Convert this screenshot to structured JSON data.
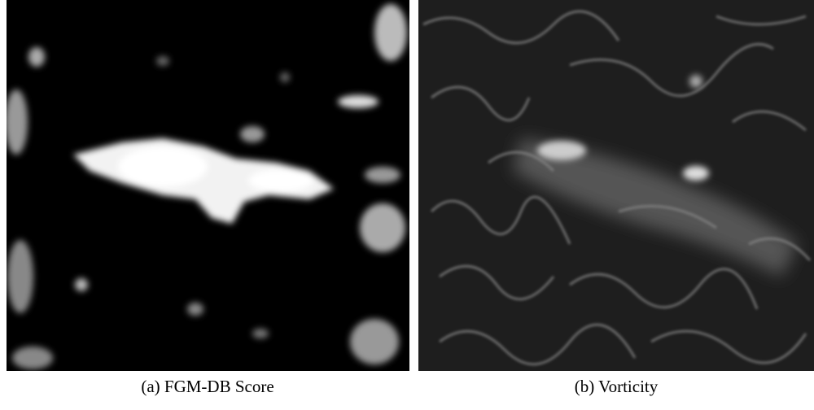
{
  "figure": {
    "panels": [
      {
        "caption": "(a) FGM-DB Score"
      },
      {
        "caption": "(b) Vorticity"
      }
    ]
  }
}
